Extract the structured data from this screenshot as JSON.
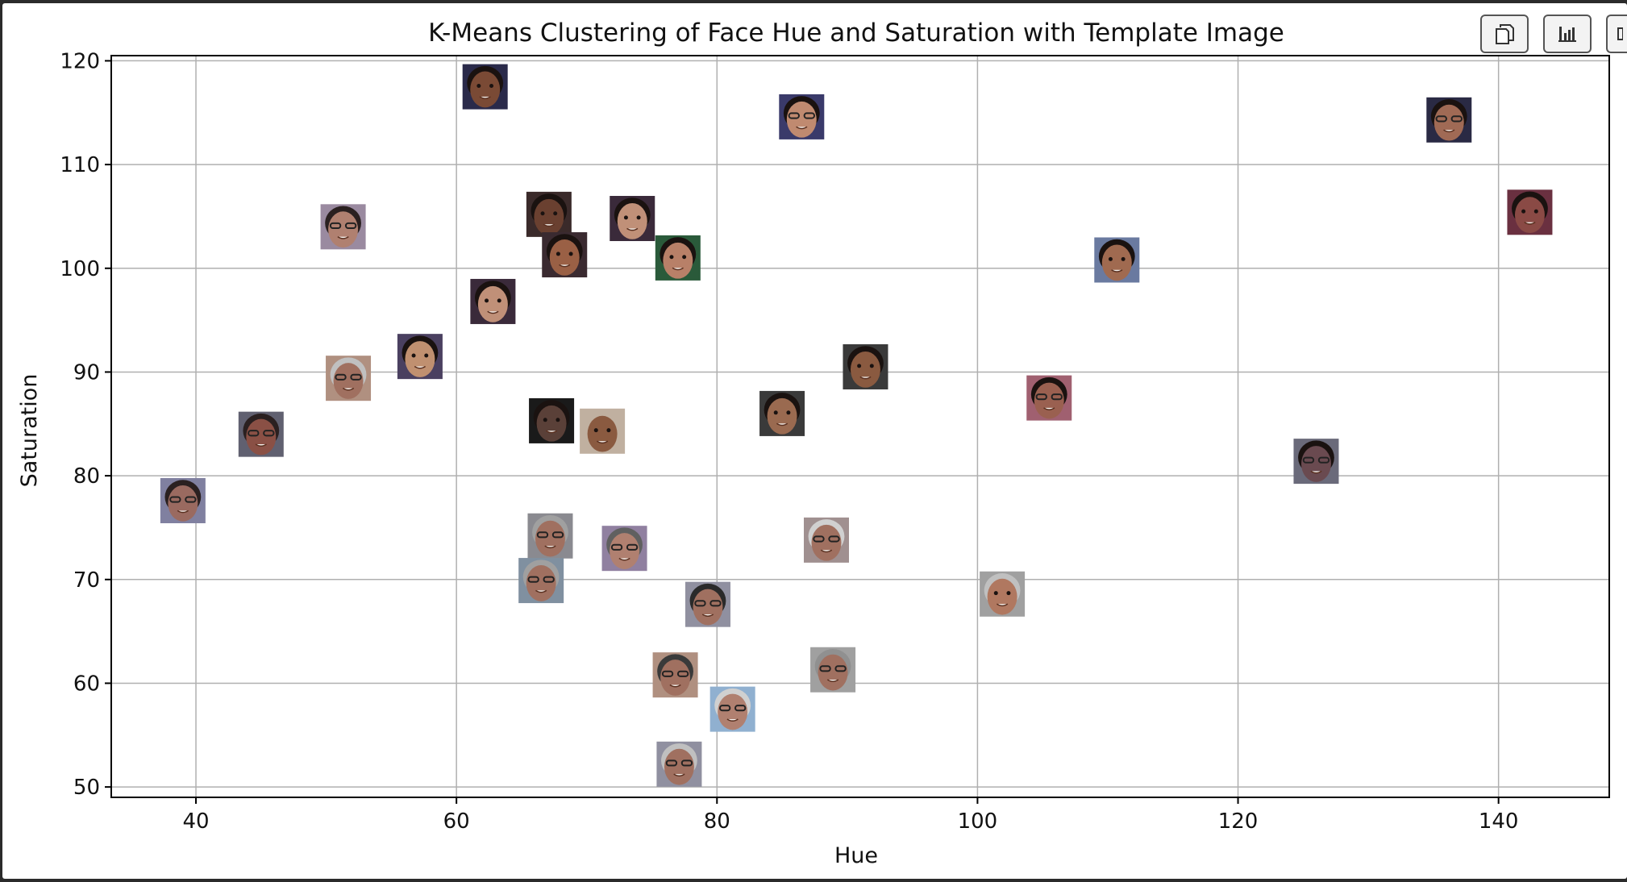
{
  "toolbar": {
    "buttons": [
      {
        "icon": "copy-icon"
      },
      {
        "icon": "bar-chart-icon"
      },
      {
        "icon": "more-icon"
      }
    ]
  },
  "chart_data": {
    "type": "scatter",
    "title": "K-Means Clustering of Face Hue and Saturation with Template Image",
    "xlabel": "Hue",
    "ylabel": "Saturation",
    "xlim": [
      33.5,
      148.5
    ],
    "ylim": [
      49,
      120.5
    ],
    "xticks": [
      40,
      60,
      80,
      100,
      120,
      140
    ],
    "yticks": [
      50,
      60,
      70,
      80,
      90,
      100,
      110,
      120
    ],
    "grid": true,
    "marker": "face-thumbnail",
    "colors": {
      "grid": "#b0b0b0",
      "axis": "#000000"
    },
    "points": [
      {
        "x": 62.2,
        "y": 117.5,
        "skin": "#7a4a35",
        "bg": "#2a2a4a",
        "hair": "#1a1210"
      },
      {
        "x": 86.5,
        "y": 114.6,
        "skin": "#c08a70",
        "bg": "#3a3a6a",
        "hair": "#1a1210",
        "glasses": true
      },
      {
        "x": 136.2,
        "y": 114.3,
        "skin": "#a06a55",
        "bg": "#2a2a44",
        "hair": "#1a1210",
        "glasses": true
      },
      {
        "x": 51.3,
        "y": 104.0,
        "skin": "#b08070",
        "bg": "#9a8aa0",
        "hair": "#2a2020",
        "glasses": true
      },
      {
        "x": 67.1,
        "y": 105.2,
        "skin": "#6a4030",
        "bg": "#3a2a2a",
        "hair": "#1a1210"
      },
      {
        "x": 73.5,
        "y": 104.8,
        "skin": "#c09078",
        "bg": "#3a2a3a",
        "hair": "#1a1210"
      },
      {
        "x": 142.4,
        "y": 105.4,
        "skin": "#8a4a45",
        "bg": "#6a3040",
        "hair": "#1a1210"
      },
      {
        "x": 68.3,
        "y": 101.3,
        "skin": "#9a6045",
        "bg": "#3a2a30",
        "hair": "#1a1210"
      },
      {
        "x": 77.0,
        "y": 101.0,
        "skin": "#b88068",
        "bg": "#2a5a3a",
        "hair": "#1a1210"
      },
      {
        "x": 110.7,
        "y": 100.8,
        "skin": "#a06a50",
        "bg": "#6a7aa0",
        "hair": "#1a1210"
      },
      {
        "x": 62.8,
        "y": 96.8,
        "skin": "#c09078",
        "bg": "#3a2a3a",
        "hair": "#1a1210"
      },
      {
        "x": 57.2,
        "y": 91.5,
        "skin": "#c09070",
        "bg": "#4a4060",
        "hair": "#1a1210"
      },
      {
        "x": 51.7,
        "y": 89.4,
        "skin": "#a07060",
        "bg": "#b09080",
        "hair": "#c0c0c0",
        "glasses": true
      },
      {
        "x": 91.4,
        "y": 90.5,
        "skin": "#8a5a40",
        "bg": "#3a3a3a",
        "hair": "#1a1210"
      },
      {
        "x": 105.5,
        "y": 87.5,
        "skin": "#9a6050",
        "bg": "#a06070",
        "hair": "#1a1210",
        "glasses": true
      },
      {
        "x": 85.0,
        "y": 86.0,
        "skin": "#9a6a50",
        "bg": "#3a3a3a",
        "hair": "#1a1210"
      },
      {
        "x": 67.3,
        "y": 85.3,
        "skin": "#5a4038",
        "bg": "#1a1a1a",
        "hair": "#1a1210"
      },
      {
        "x": 71.2,
        "y": 84.3,
        "skin": "#8a5a40",
        "bg": "#c0b0a0",
        "hair": "#c0b0a0"
      },
      {
        "x": 45.0,
        "y": 84.0,
        "skin": "#8a5045",
        "bg": "#606070",
        "hair": "#2a2020",
        "glasses": true
      },
      {
        "x": 126.0,
        "y": 81.4,
        "skin": "#6a4a50",
        "bg": "#6a6a7a",
        "hair": "#1a1210",
        "glasses": true
      },
      {
        "x": 39.0,
        "y": 77.6,
        "skin": "#9a6a60",
        "bg": "#8080a0",
        "hair": "#2a2020",
        "glasses": true
      },
      {
        "x": 67.2,
        "y": 74.2,
        "skin": "#a07060",
        "bg": "#8a8a90",
        "hair": "#a0a0a0",
        "glasses": true
      },
      {
        "x": 88.4,
        "y": 73.8,
        "skin": "#a07060",
        "bg": "#a09090",
        "hair": "#d0d0d0",
        "glasses": true
      },
      {
        "x": 72.9,
        "y": 73.0,
        "skin": "#b08070",
        "bg": "#9080a0",
        "hair": "#606060",
        "glasses": true
      },
      {
        "x": 66.5,
        "y": 69.9,
        "skin": "#a07060",
        "bg": "#8090a0",
        "hair": "#a0a0a0",
        "glasses": true
      },
      {
        "x": 101.9,
        "y": 68.6,
        "skin": "#b07860",
        "bg": "#a0a0a0",
        "hair": "#c0c0c0"
      },
      {
        "x": 79.3,
        "y": 67.6,
        "skin": "#a07060",
        "bg": "#9090a0",
        "hair": "#2a2a2a",
        "glasses": true
      },
      {
        "x": 88.9,
        "y": 61.3,
        "skin": "#a07060",
        "bg": "#a0a0a0",
        "hair": "#909090",
        "glasses": true
      },
      {
        "x": 76.8,
        "y": 60.8,
        "skin": "#a07060",
        "bg": "#b09080",
        "hair": "#3a3a3a",
        "glasses": true
      },
      {
        "x": 81.2,
        "y": 57.5,
        "skin": "#b08070",
        "bg": "#90b0d0",
        "hair": "#d0d0d0",
        "glasses": true
      },
      {
        "x": 77.1,
        "y": 52.2,
        "skin": "#a07060",
        "bg": "#9090a0",
        "hair": "#c0c0c0",
        "glasses": true
      }
    ]
  }
}
